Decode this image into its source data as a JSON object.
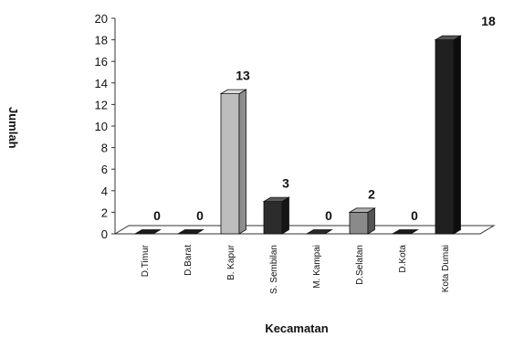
{
  "chart_data": {
    "type": "bar",
    "categories": [
      "D.Timur",
      "D.Barat",
      "B. Kapur",
      "S. Sembilan",
      "M. Kampai",
      "D.Selatan",
      "D.Kota",
      "Kota Dumai"
    ],
    "values": [
      0,
      0,
      13,
      3,
      0,
      2,
      0,
      18
    ],
    "data_labels": [
      "0",
      "0",
      "13",
      "3",
      "0",
      "2",
      "0",
      "18"
    ],
    "xlabel": "Kecamatan",
    "ylabel": "Jumlah",
    "ylim": [
      0,
      20
    ],
    "yticks": [
      0,
      2,
      4,
      6,
      8,
      10,
      12,
      14,
      16,
      18,
      20
    ],
    "grid": false,
    "legend": "none",
    "bar_style": "3d",
    "colors": {
      "front": [
        "#1b1b1b",
        "#1b1b1b",
        "#bdbdbd",
        "#2c2c2c",
        "#2a2a2a",
        "#8a8a8a",
        "#1b1b1b",
        "#202020"
      ],
      "top": [
        "#4a4a4a",
        "#4a4a4a",
        "#dcdcdc",
        "#5a5a5a",
        "#555555",
        "#b0b0b0",
        "#4a4a4a",
        "#555555"
      ],
      "side": [
        "#0e0e0e",
        "#0e0e0e",
        "#8e8e8e",
        "#151515",
        "#141414",
        "#555555",
        "#0e0e0e",
        "#0d0d0d"
      ]
    }
  }
}
